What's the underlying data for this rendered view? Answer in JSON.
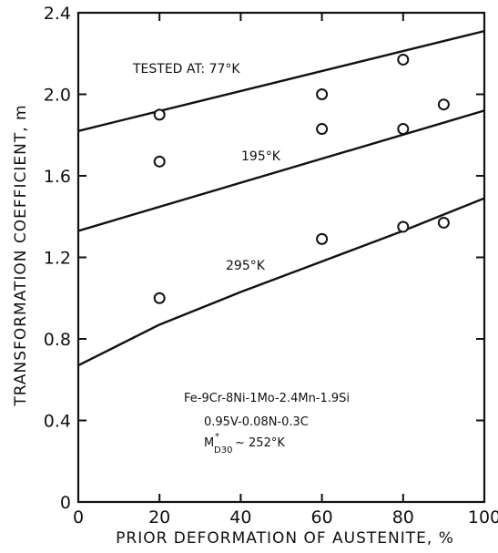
{
  "chart_data": {
    "type": "scatter",
    "xlabel": "PRIOR DEFORMATION OF AUSTENITE, %",
    "ylabel": "TRANSFORMATION COEFFICIENT, m",
    "xlim": [
      0,
      100
    ],
    "ylim": [
      0,
      2.4
    ],
    "x_ticks": [
      "0",
      "20",
      "40",
      "60",
      "80",
      "100"
    ],
    "y_ticks": [
      "0",
      "0.4",
      "0.8",
      "1.2",
      "1.6",
      "2.0",
      "2.4"
    ],
    "grid": false,
    "series": [
      {
        "name": "TESTED AT: 77°K",
        "points": [
          [
            20,
            1.9
          ],
          [
            60,
            2.0
          ],
          [
            80,
            2.17
          ]
        ],
        "fit": [
          [
            0,
            1.82
          ],
          [
            100,
            2.31
          ]
        ]
      },
      {
        "name": "195°K",
        "points": [
          [
            20,
            1.67
          ],
          [
            60,
            1.83
          ],
          [
            80,
            1.83
          ],
          [
            90,
            1.95
          ]
        ],
        "fit": [
          [
            0,
            1.33
          ],
          [
            100,
            1.92
          ]
        ]
      },
      {
        "name": "295°K",
        "points": [
          [
            20,
            1.0
          ],
          [
            60,
            1.29
          ],
          [
            80,
            1.35
          ],
          [
            90,
            1.37
          ]
        ],
        "fit": [
          [
            0,
            0.67
          ],
          [
            20,
            0.87
          ],
          [
            40,
            1.03
          ],
          [
            60,
            1.18
          ],
          [
            80,
            1.33
          ],
          [
            100,
            1.49
          ]
        ]
      }
    ],
    "annotations": {
      "composition_line1": "Fe-9Cr-8Ni-1Mo-2.4Mn-1.9Si",
      "composition_line2": "0.95V-0.08N-0.3C",
      "md30_prefix": "M",
      "md30_sup": "*",
      "md30_sub": "D30",
      "md30_value": "~ 252°K"
    }
  }
}
